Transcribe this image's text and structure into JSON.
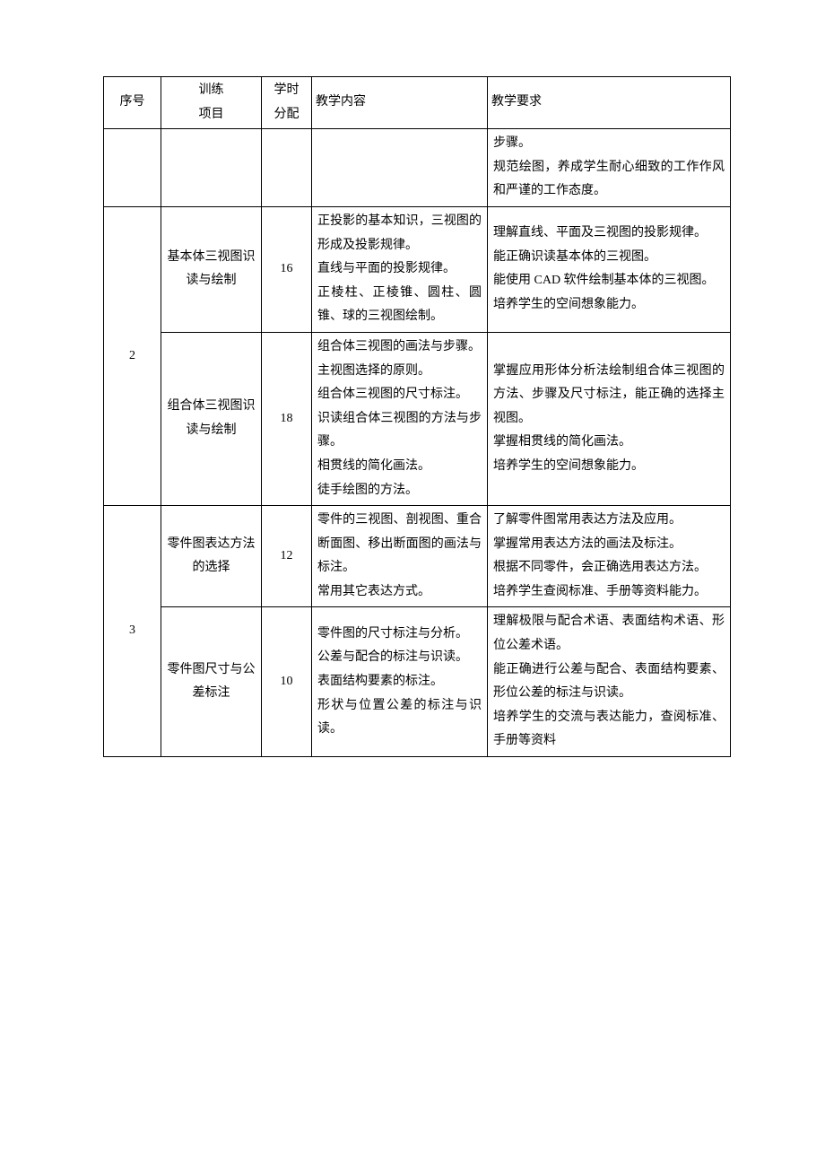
{
  "header": {
    "seq": "序号",
    "project_line1": "训练",
    "project_line2": "项目",
    "hours_line1": "学时",
    "hours_line2": "分配",
    "content": "教学内容",
    "requirement": "教学要求"
  },
  "rows": [
    {
      "seq": "",
      "project": "",
      "hours": "",
      "content": "",
      "requirement": "步骤。\n规范绘图，养成学生耐心细致的工作作风和严谨的工作态度。"
    },
    {
      "seq": "2",
      "sub": [
        {
          "project": "基本体三视图识读与绘制",
          "hours": "16",
          "content": "正投影的基本知识，三视图的形成及投影规律。\n直线与平面的投影规律。\n正棱柱、正棱锥、圆柱、圆锥、球的三视图绘制。",
          "requirement": "理解直线、平面及三视图的投影规律。\n能正确识读基本体的三视图。\n能使用 CAD 软件绘制基本体的三视图。\n培养学生的空间想象能力。"
        },
        {
          "project": "组合体三视图识读与绘制",
          "hours": "18",
          "content": "组合体三视图的画法与步骤。\n主视图选择的原则。\n组合体三视图的尺寸标注。\n识读组合体三视图的方法与步骤。\n相贯线的简化画法。\n徒手绘图的方法。",
          "requirement": "掌握应用形体分析法绘制组合体三视图的方法、步骤及尺寸标注，能正确的选择主视图。\n掌握相贯线的简化画法。\n培养学生的空间想象能力。"
        }
      ]
    },
    {
      "seq": "3",
      "sub": [
        {
          "project": "零件图表达方法的选择",
          "hours": "12",
          "content": "零件的三视图、剖视图、重合断面图、移出断面图的画法与标注。\n常用其它表达方式。",
          "requirement": "了解零件图常用表达方法及应用。\n掌握常用表达方法的画法及标注。\n根据不同零件，会正确选用表达方法。\n培养学生查阅标准、手册等资料能力。"
        },
        {
          "project": "零件图尺寸与公差标注",
          "hours": "10",
          "content": "零件图的尺寸标注与分析。\n公差与配合的标注与识读。\n表面结构要素的标注。\n形状与位置公差的标注与识读。",
          "requirement": "理解极限与配合术语、表面结构术语、形位公差术语。\n能正确进行公差与配合、表面结构要素、形位公差的标注与识读。\n培养学生的交流与表达能力，查阅标准、手册等资料"
        }
      ]
    }
  ]
}
